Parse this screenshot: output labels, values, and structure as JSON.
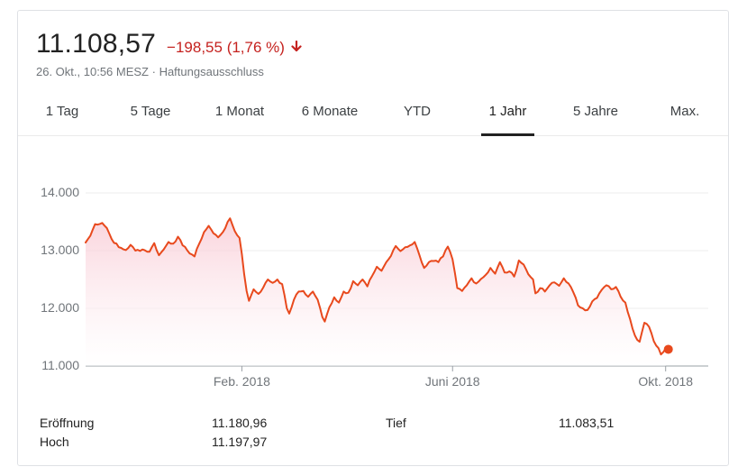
{
  "quote": {
    "price": "11.108,57",
    "change": "−198,55 (1,76 %)",
    "timestamp": "26. Okt., 10:56 MESZ",
    "separator": " · ",
    "disclaimer": "Haftungsausschluss",
    "change_direction_icon": "arrow-down-icon",
    "change_color": "#c5221f"
  },
  "tabs": [
    {
      "label": "1 Tag",
      "active": false
    },
    {
      "label": "5 Tage",
      "active": false
    },
    {
      "label": "1 Monat",
      "active": false
    },
    {
      "label": "6 Monate",
      "active": false
    },
    {
      "label": "YTD",
      "active": false
    },
    {
      "label": "1 Jahr",
      "active": true
    },
    {
      "label": "5 Jahre",
      "active": false
    },
    {
      "label": "Max.",
      "active": false
    }
  ],
  "stats": {
    "open_label": "Eröffnung",
    "open_value": "11.180,96",
    "high_label": "Hoch",
    "high_value": "11.197,97",
    "low_label": "Tief",
    "low_value": "11.083,51"
  },
  "chart_data": {
    "type": "area",
    "title": "",
    "xlabel": "",
    "ylabel": "",
    "ylim": [
      11000,
      14000
    ],
    "yticks": [
      {
        "value": 14000,
        "label": "14.000"
      },
      {
        "value": 13000,
        "label": "13.000"
      },
      {
        "value": 12000,
        "label": "12.000"
      },
      {
        "value": 11000,
        "label": "11.000"
      }
    ],
    "xticks": [
      {
        "index": 66,
        "label": "Feb. 2018"
      },
      {
        "index": 155,
        "label": "Juni 2018"
      },
      {
        "index": 245,
        "label": "Okt. 2018"
      }
    ],
    "grid": true,
    "line_color": "#e8491d",
    "fill_color": "#fbe1e5",
    "x_count": 264,
    "x": [
      "2017-10-27",
      "2018-10-26"
    ],
    "keypoints": [
      [
        0,
        13140
      ],
      [
        2,
        13260
      ],
      [
        4,
        13460
      ],
      [
        7,
        13480
      ],
      [
        9,
        13390
      ],
      [
        11,
        13200
      ],
      [
        14,
        13060
      ],
      [
        17,
        13010
      ],
      [
        19,
        13100
      ],
      [
        21,
        13000
      ],
      [
        24,
        13020
      ],
      [
        27,
        12980
      ],
      [
        29,
        13130
      ],
      [
        31,
        12920
      ],
      [
        33,
        13020
      ],
      [
        35,
        13150
      ],
      [
        37,
        13120
      ],
      [
        39,
        13240
      ],
      [
        41,
        13090
      ],
      [
        43,
        13000
      ],
      [
        46,
        12900
      ],
      [
        48,
        13120
      ],
      [
        50,
        13320
      ],
      [
        52,
        13430
      ],
      [
        54,
        13300
      ],
      [
        56,
        13230
      ],
      [
        59,
        13390
      ],
      [
        61,
        13560
      ],
      [
        63,
        13340
      ],
      [
        65,
        13220
      ],
      [
        66,
        12940
      ],
      [
        67,
        12590
      ],
      [
        68,
        12300
      ],
      [
        69,
        12130
      ],
      [
        71,
        12330
      ],
      [
        73,
        12250
      ],
      [
        75,
        12360
      ],
      [
        77,
        12500
      ],
      [
        79,
        12440
      ],
      [
        81,
        12500
      ],
      [
        83,
        12420
      ],
      [
        85,
        12000
      ],
      [
        86,
        11910
      ],
      [
        88,
        12150
      ],
      [
        90,
        12290
      ],
      [
        92,
        12300
      ],
      [
        94,
        12200
      ],
      [
        96,
        12290
      ],
      [
        98,
        12150
      ],
      [
        100,
        11850
      ],
      [
        101,
        11770
      ],
      [
        103,
        12020
      ],
      [
        105,
        12190
      ],
      [
        107,
        12100
      ],
      [
        109,
        12290
      ],
      [
        111,
        12270
      ],
      [
        113,
        12470
      ],
      [
        115,
        12400
      ],
      [
        117,
        12500
      ],
      [
        119,
        12380
      ],
      [
        121,
        12560
      ],
      [
        123,
        12720
      ],
      [
        125,
        12650
      ],
      [
        127,
        12800
      ],
      [
        129,
        12910
      ],
      [
        131,
        13080
      ],
      [
        133,
        12990
      ],
      [
        135,
        13060
      ],
      [
        137,
        13090
      ],
      [
        139,
        13150
      ],
      [
        141,
        12920
      ],
      [
        143,
        12700
      ],
      [
        145,
        12800
      ],
      [
        147,
        12820
      ],
      [
        149,
        12800
      ],
      [
        151,
        12900
      ],
      [
        153,
        13070
      ],
      [
        155,
        12850
      ],
      [
        156,
        12610
      ],
      [
        157,
        12350
      ],
      [
        159,
        12300
      ],
      [
        161,
        12400
      ],
      [
        163,
        12520
      ],
      [
        165,
        12430
      ],
      [
        167,
        12510
      ],
      [
        169,
        12580
      ],
      [
        171,
        12700
      ],
      [
        173,
        12600
      ],
      [
        175,
        12800
      ],
      [
        177,
        12620
      ],
      [
        179,
        12640
      ],
      [
        181,
        12550
      ],
      [
        183,
        12830
      ],
      [
        185,
        12760
      ],
      [
        187,
        12590
      ],
      [
        189,
        12500
      ],
      [
        190,
        12260
      ],
      [
        192,
        12350
      ],
      [
        194,
        12290
      ],
      [
        196,
        12400
      ],
      [
        198,
        12450
      ],
      [
        200,
        12390
      ],
      [
        202,
        12520
      ],
      [
        204,
        12430
      ],
      [
        206,
        12280
      ],
      [
        208,
        12050
      ],
      [
        210,
        12000
      ],
      [
        212,
        11970
      ],
      [
        214,
        12120
      ],
      [
        216,
        12180
      ],
      [
        218,
        12320
      ],
      [
        220,
        12400
      ],
      [
        222,
        12330
      ],
      [
        224,
        12370
      ],
      [
        226,
        12200
      ],
      [
        228,
        12100
      ],
      [
        230,
        11810
      ],
      [
        232,
        11530
      ],
      [
        234,
        11420
      ],
      [
        236,
        11750
      ],
      [
        238,
        11680
      ],
      [
        240,
        11430
      ],
      [
        242,
        11310
      ],
      [
        243,
        11200
      ],
      [
        244,
        11240
      ],
      [
        245,
        11300
      ]
    ],
    "last_point": {
      "index": 245,
      "value": 11290
    }
  }
}
